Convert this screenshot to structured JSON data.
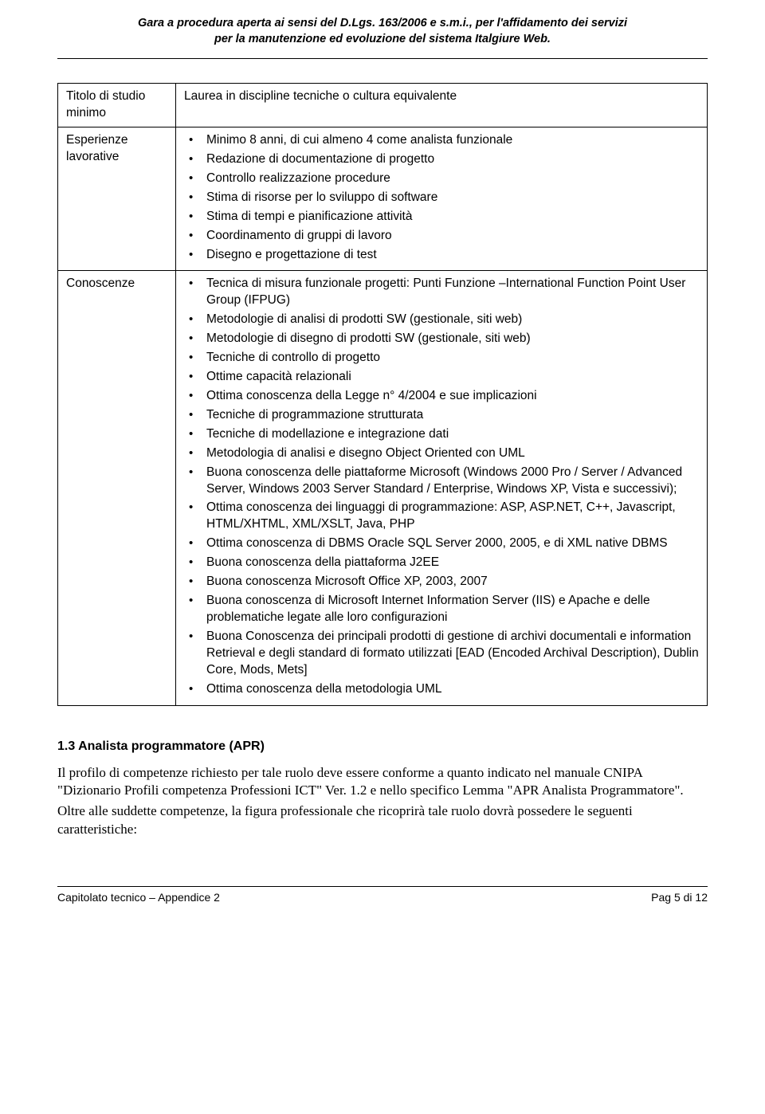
{
  "header": {
    "line1": "Gara a procedura aperta ai sensi del D.Lgs. 163/2006 e s.m.i., per l'affidamento dei servizi",
    "line2": "per la manutenzione ed evoluzione del sistema Italgiure Web."
  },
  "table": {
    "row1": {
      "label_line1": "Titolo di studio",
      "label_line2": "minimo",
      "content": "Laurea in discipline tecniche o cultura equivalente"
    },
    "row2": {
      "label_line1": "Esperienze",
      "label_line2": "lavorative",
      "items": [
        "Minimo 8 anni, di cui almeno 4 come analista funzionale",
        "Redazione di documentazione di progetto",
        "Controllo realizzazione procedure",
        "Stima di risorse per lo sviluppo di software",
        "Stima di tempi e pianificazione attività",
        "Coordinamento di gruppi di lavoro",
        "Disegno e progettazione di test"
      ]
    },
    "row3": {
      "label": "Conoscenze",
      "items": [
        "Tecnica di misura funzionale progetti: Punti Funzione –International Function Point User Group (IFPUG)",
        "Metodologie di analisi di prodotti SW (gestionale, siti web)",
        "Metodologie di disegno di prodotti SW (gestionale, siti web)",
        "Tecniche di controllo di progetto",
        "Ottime capacità relazionali",
        "Ottima conoscenza della Legge n° 4/2004 e sue implicazioni",
        "Tecniche di programmazione strutturata",
        "Tecniche di modellazione e integrazione dati",
        "Metodologia di analisi e disegno Object Oriented con UML",
        "Buona conoscenza delle piattaforme Microsoft (Windows 2000 Pro / Server / Advanced Server, Windows 2003 Server Standard / Enterprise, Windows XP, Vista e successivi);",
        "Ottima conoscenza dei linguaggi di programmazione: ASP, ASP.NET, C++, Javascript, HTML/XHTML, XML/XSLT, Java, PHP",
        "Ottima conoscenza di DBMS Oracle SQL Server 2000, 2005, e di XML native DBMS",
        "Buona conoscenza della piattaforma J2EE",
        "Buona conoscenza Microsoft Office XP, 2003, 2007",
        "Buona conoscenza di Microsoft Internet Information Server (IIS) e Apache e delle problematiche legate alle loro configurazioni",
        "Buona Conoscenza dei principali prodotti di gestione di archivi documentali e information Retrieval e degli standard di formato utilizzati [EAD (Encoded Archival Description), Dublin Core, Mods, Mets]",
        "Ottima conoscenza della metodologia UML"
      ]
    }
  },
  "section": {
    "heading": "1.3  Analista programmatore (APR)",
    "para1": "Il profilo di competenze richiesto per tale ruolo deve essere conforme a quanto indicato nel manuale CNIPA \"Dizionario Profili competenza Professioni ICT\" Ver. 1.2 e nello specifico Lemma \"APR Analista Programmatore\".",
    "para2": "Oltre alle suddette competenze, la figura professionale che ricoprirà tale ruolo dovrà possedere le seguenti caratteristiche:"
  },
  "footer": {
    "left": "Capitolato tecnico – Appendice  2",
    "right": "Pag  5 di 12"
  }
}
